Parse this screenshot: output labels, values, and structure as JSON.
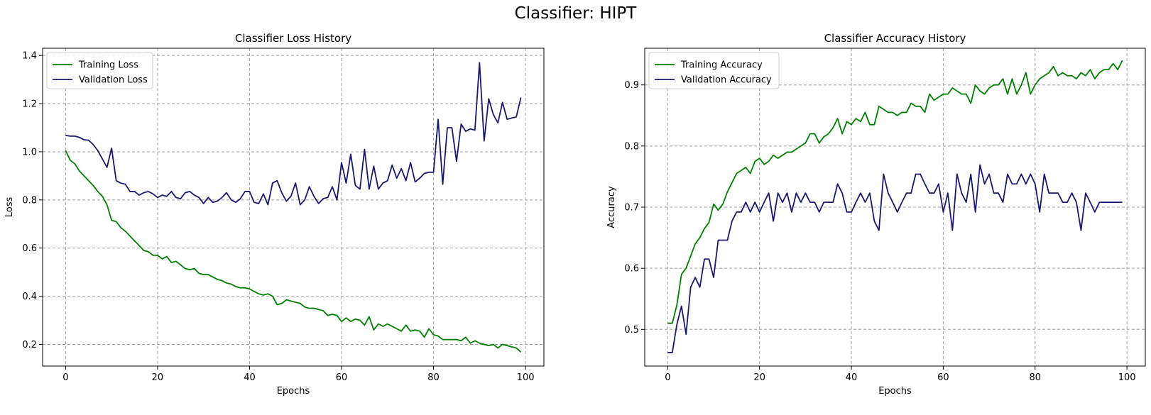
{
  "suptitle": "Classifier: HIPT",
  "colors": {
    "train": "#008000",
    "val": "#191970",
    "grid": "#a0a0a0"
  },
  "chart_data": [
    {
      "type": "line",
      "title": "Classifier Loss History",
      "xlabel": "Epochs",
      "ylabel": "Loss",
      "xlim": [
        -5,
        104
      ],
      "ylim": [
        0.11,
        1.43
      ],
      "xticks": [
        0,
        20,
        40,
        60,
        80,
        100
      ],
      "yticks": [
        0.2,
        0.4,
        0.6,
        0.8,
        1.0,
        1.2,
        1.4
      ],
      "ytick_decimals": 1,
      "grid": true,
      "legend": "top-left",
      "series": [
        {
          "name": "Training Loss",
          "color": "#008000",
          "values": [
            1.005,
            0.965,
            0.95,
            0.92,
            0.9,
            0.88,
            0.86,
            0.835,
            0.815,
            0.78,
            0.715,
            0.71,
            0.685,
            0.67,
            0.65,
            0.63,
            0.61,
            0.59,
            0.585,
            0.57,
            0.57,
            0.555,
            0.565,
            0.54,
            0.545,
            0.53,
            0.515,
            0.51,
            0.515,
            0.495,
            0.49,
            0.49,
            0.48,
            0.47,
            0.465,
            0.455,
            0.45,
            0.44,
            0.435,
            0.435,
            0.43,
            0.42,
            0.41,
            0.405,
            0.41,
            0.4,
            0.365,
            0.37,
            0.385,
            0.38,
            0.375,
            0.37,
            0.355,
            0.35,
            0.35,
            0.345,
            0.34,
            0.32,
            0.325,
            0.32,
            0.295,
            0.31,
            0.295,
            0.305,
            0.3,
            0.28,
            0.315,
            0.26,
            0.285,
            0.275,
            0.285,
            0.275,
            0.265,
            0.255,
            0.28,
            0.255,
            0.26,
            0.255,
            0.23,
            0.265,
            0.24,
            0.235,
            0.22,
            0.22,
            0.22,
            0.22,
            0.215,
            0.23,
            0.205,
            0.215,
            0.205,
            0.2,
            0.195,
            0.2,
            0.185,
            0.2,
            0.195,
            0.19,
            0.185,
            0.168
          ]
        },
        {
          "name": "Validation Loss",
          "color": "#191970",
          "values": [
            1.068,
            1.065,
            1.065,
            1.06,
            1.05,
            1.048,
            1.03,
            1.005,
            0.97,
            0.935,
            1.015,
            0.88,
            0.87,
            0.865,
            0.835,
            0.835,
            0.82,
            0.83,
            0.835,
            0.825,
            0.81,
            0.82,
            0.815,
            0.835,
            0.81,
            0.805,
            0.83,
            0.835,
            0.82,
            0.81,
            0.785,
            0.81,
            0.79,
            0.795,
            0.81,
            0.83,
            0.8,
            0.79,
            0.805,
            0.835,
            0.835,
            0.79,
            0.785,
            0.825,
            0.78,
            0.87,
            0.88,
            0.83,
            0.795,
            0.815,
            0.87,
            0.78,
            0.8,
            0.855,
            0.815,
            0.785,
            0.805,
            0.81,
            0.855,
            0.8,
            0.955,
            0.87,
            0.99,
            0.86,
            0.845,
            1.01,
            0.845,
            0.94,
            0.845,
            0.87,
            0.88,
            0.945,
            0.89,
            0.93,
            0.88,
            0.955,
            0.875,
            0.89,
            0.91,
            0.915,
            0.915,
            1.135,
            0.865,
            1.1,
            1.1,
            0.96,
            1.115,
            1.085,
            1.095,
            1.09,
            1.37,
            1.045,
            1.22,
            1.155,
            1.12,
            1.205,
            1.135,
            1.14,
            1.145,
            1.225
          ]
        }
      ]
    },
    {
      "type": "line",
      "title": "Classifier Accuracy History",
      "xlabel": "Epochs",
      "ylabel": "Accuracy",
      "xlim": [
        -5,
        104
      ],
      "ylim": [
        0.44,
        0.96
      ],
      "xticks": [
        0,
        20,
        40,
        60,
        80,
        100
      ],
      "yticks": [
        0.5,
        0.6,
        0.7,
        0.8,
        0.9
      ],
      "ytick_decimals": 1,
      "grid": true,
      "legend": "top-left",
      "series": [
        {
          "name": "Training Accuracy",
          "color": "#008000",
          "values": [
            0.51,
            0.51,
            0.54,
            0.59,
            0.6,
            0.62,
            0.64,
            0.65,
            0.665,
            0.675,
            0.705,
            0.695,
            0.705,
            0.725,
            0.74,
            0.755,
            0.76,
            0.765,
            0.755,
            0.775,
            0.78,
            0.77,
            0.775,
            0.785,
            0.78,
            0.785,
            0.79,
            0.79,
            0.795,
            0.8,
            0.805,
            0.82,
            0.82,
            0.805,
            0.815,
            0.82,
            0.83,
            0.845,
            0.82,
            0.84,
            0.835,
            0.845,
            0.84,
            0.855,
            0.835,
            0.835,
            0.865,
            0.86,
            0.855,
            0.855,
            0.85,
            0.855,
            0.855,
            0.87,
            0.865,
            0.865,
            0.855,
            0.885,
            0.875,
            0.88,
            0.885,
            0.885,
            0.895,
            0.89,
            0.885,
            0.885,
            0.87,
            0.9,
            0.89,
            0.885,
            0.895,
            0.9,
            0.9,
            0.91,
            0.885,
            0.91,
            0.885,
            0.9,
            0.92,
            0.885,
            0.9,
            0.91,
            0.915,
            0.92,
            0.93,
            0.915,
            0.92,
            0.915,
            0.915,
            0.91,
            0.92,
            0.915,
            0.925,
            0.91,
            0.92,
            0.925,
            0.925,
            0.935,
            0.925,
            0.94
          ]
        },
        {
          "name": "Validation Accuracy",
          "color": "#191970",
          "values": [
            0.462,
            0.462,
            0.508,
            0.538,
            0.492,
            0.569,
            0.585,
            0.569,
            0.615,
            0.615,
            0.585,
            0.646,
            0.646,
            0.646,
            0.677,
            0.692,
            0.692,
            0.708,
            0.692,
            0.708,
            0.692,
            0.708,
            0.723,
            0.677,
            0.723,
            0.708,
            0.723,
            0.692,
            0.723,
            0.708,
            0.723,
            0.708,
            0.708,
            0.692,
            0.708,
            0.708,
            0.708,
            0.738,
            0.723,
            0.692,
            0.692,
            0.708,
            0.723,
            0.708,
            0.723,
            0.677,
            0.662,
            0.754,
            0.723,
            0.708,
            0.692,
            0.708,
            0.723,
            0.723,
            0.754,
            0.754,
            0.738,
            0.723,
            0.723,
            0.738,
            0.692,
            0.723,
            0.662,
            0.754,
            0.723,
            0.708,
            0.754,
            0.692,
            0.769,
            0.738,
            0.754,
            0.723,
            0.723,
            0.708,
            0.754,
            0.738,
            0.738,
            0.754,
            0.738,
            0.754,
            0.738,
            0.692,
            0.754,
            0.723,
            0.723,
            0.723,
            0.708,
            0.708,
            0.723,
            0.708,
            0.662,
            0.723,
            0.708,
            0.692,
            0.708,
            0.708,
            0.708,
            0.708,
            0.708,
            0.708
          ]
        }
      ]
    }
  ]
}
